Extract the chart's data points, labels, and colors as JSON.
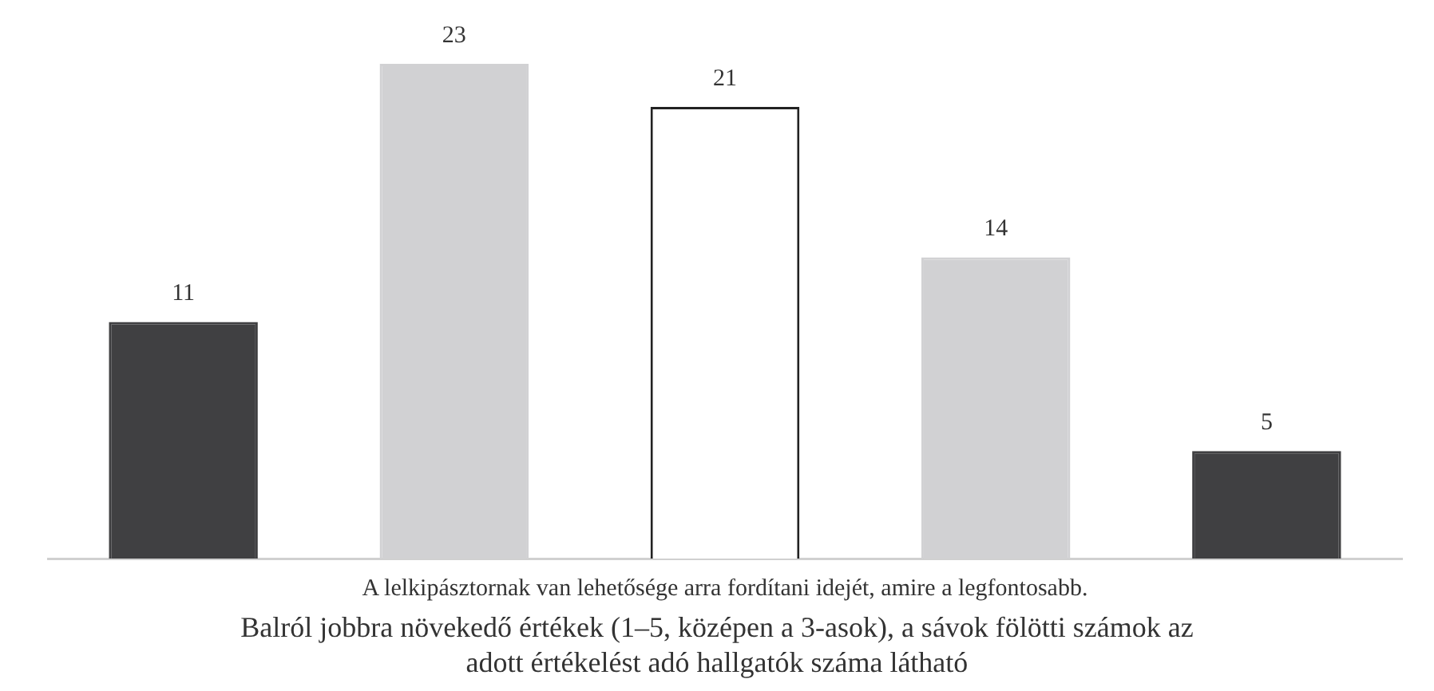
{
  "chart_data": {
    "type": "bar",
    "xlabel": "A lelkipásztornak van lehetősége arra fordítani idejét, amire a legfontosabb.",
    "categories": [
      null,
      null,
      null,
      null,
      null
    ],
    "values": [
      11,
      23,
      21,
      14,
      5
    ],
    "colors": [
      "#404042",
      "#d1d1d3",
      "#ffffff",
      "#d1d1d3",
      "#404042"
    ],
    "data_labels": true,
    "annotations": [
      "Balról jobbra növekedő értékek (1–5, középen a 3-asok), a sávok fölötti számok az adott értékelést adó hallgatók száma látható"
    ]
  }
}
